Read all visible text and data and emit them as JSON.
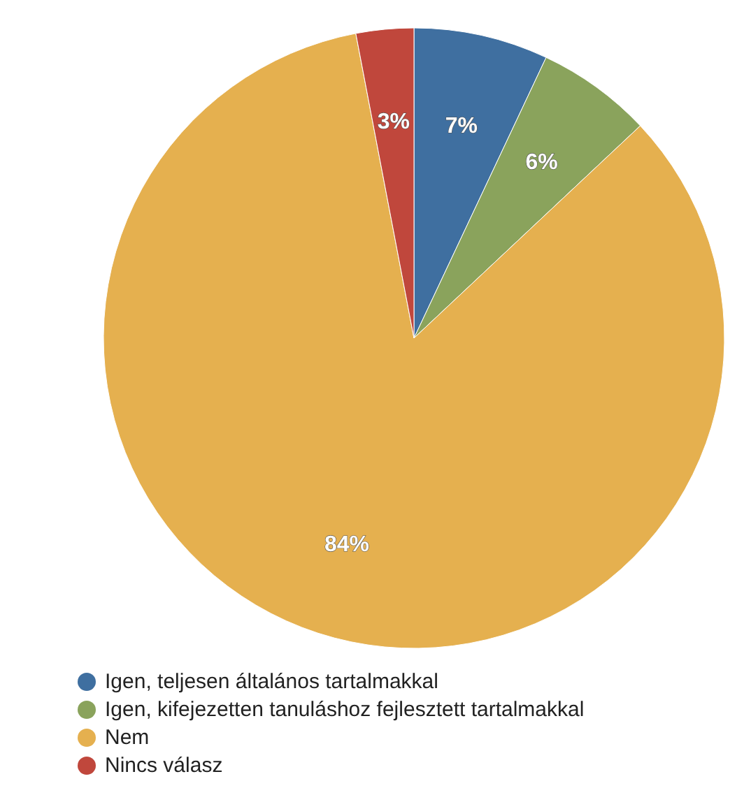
{
  "chart_data": {
    "type": "pie",
    "categories": [
      "Igen, teljesen általános tartalmakkal",
      "Igen, kifejezetten tanuláshoz fejlesztett tartalmakkal",
      "Nem",
      "Nincs válasz"
    ],
    "values": [
      7,
      6,
      84,
      3
    ],
    "colors": [
      "#3f6fa0",
      "#8aa35c",
      "#e5b04f",
      "#c0473c"
    ],
    "value_labels": [
      "7%",
      "6%",
      "84%",
      "3%"
    ],
    "legend": "bottom left"
  }
}
